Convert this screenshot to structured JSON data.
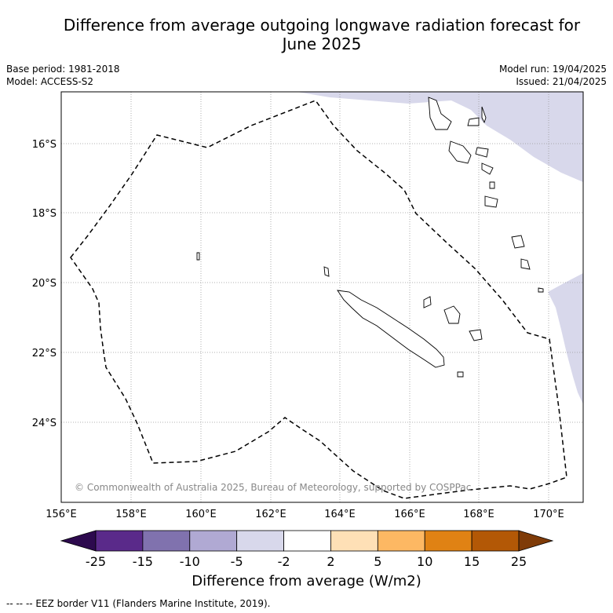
{
  "title_line1": "Difference from average outgoing longwave radiation forecast for",
  "title_line2": "June 2025",
  "base_period": "Base period: 1981-2018",
  "model": "Model: ACCESS-S2",
  "model_run": "Model run: 19/04/2025",
  "issued": "Issued: 21/04/2025",
  "lon_labels": [
    "156°E",
    "158°E",
    "160°E",
    "162°E",
    "164°E",
    "166°E",
    "168°E",
    "170°E"
  ],
  "lat_labels": [
    "16°S",
    "18°S",
    "20°S",
    "22°S",
    "24°S"
  ],
  "copyright": "© Commonwealth of Australia 2025, Bureau of Meteorology, supported by COSPPac",
  "colorbar": {
    "ticks": [
      "-25",
      "-15",
      "-10",
      "-5",
      "-2",
      "2",
      "5",
      "10",
      "15",
      "25"
    ],
    "colors": [
      "#2d0a4e",
      "#5a2a8a",
      "#8072ae",
      "#b0a9d3",
      "#d8d8eb",
      "#ffffff",
      "#fee0b6",
      "#fdb863",
      "#e08214",
      "#b35806",
      "#7f3b08"
    ],
    "label": "Difference from average (W/m2)"
  },
  "footer": "--  --  -- EEZ border V11 (Flanders Marine Institute, 2019)."
}
